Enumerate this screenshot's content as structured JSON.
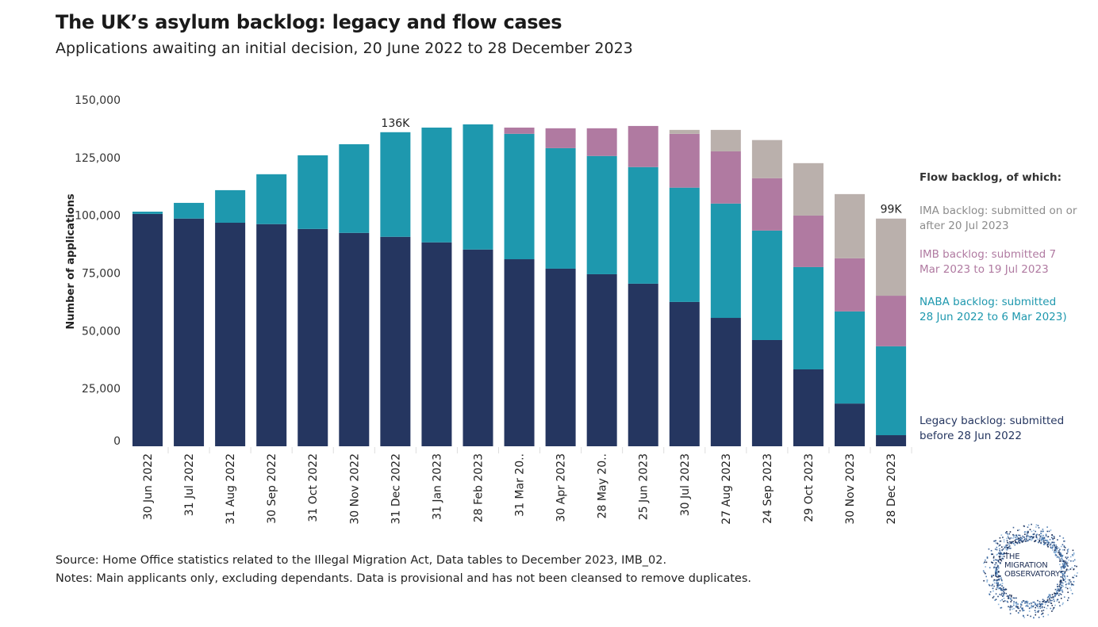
{
  "title": "The UK’s asylum backlog: legacy and flow cases",
  "subtitle": "Applications awaiting an initial decision, 20 June 2022 to 28 December 2023",
  "chart_data": {
    "type": "bar",
    "stacked": true,
    "ylabel": "Number of applications",
    "ylim": [
      0,
      150000
    ],
    "yticks": [
      0,
      25000,
      50000,
      75000,
      100000,
      125000,
      150000
    ],
    "ytick_labels": [
      "0",
      "25,000",
      "50,000",
      "75,000",
      "100,000",
      "125,000",
      "150,000"
    ],
    "grid": false,
    "categories": [
      "30 Jun 2022",
      "31 Jul 2022",
      "31 Aug 2022",
      "30 Sep 2022",
      "31 Oct 2022",
      "30 Nov 2022",
      "31 Dec 2022",
      "31 Jan 2023",
      "28 Feb 2023",
      "31 Mar 20..",
      "30 Apr 2023",
      "28 May 20..",
      "25 Jun 2023",
      "30 Jul 2023",
      "27 Aug 2023",
      "24 Sep 2023",
      "29 Oct 2023",
      "30 Nov 2023",
      "28 Dec 2023"
    ],
    "series": [
      {
        "name": "Legacy backlog: submitted before 28 Jun 2022",
        "color": "#253660",
        "values": [
          100600,
          98600,
          96800,
          96200,
          94100,
          92400,
          90700,
          88300,
          85200,
          81000,
          76900,
          74500,
          70400,
          62500,
          55600,
          46000,
          33300,
          18500,
          4800
        ]
      },
      {
        "name": "NABA backlog: submitted 28 Jun 2022 to 6 Mar 2023)",
        "color": "#1e98ae",
        "values": [
          1000,
          6800,
          14100,
          21600,
          31900,
          38400,
          45300,
          49700,
          54200,
          54300,
          52200,
          51200,
          50500,
          49500,
          49500,
          47400,
          44300,
          39900,
          38500
        ]
      },
      {
        "name": "IMB backlog: submitted 7 Mar 2023 to 19 Jul 2023",
        "color": "#b07aa1",
        "values": [
          0,
          0,
          0,
          0,
          0,
          0,
          0,
          0,
          0,
          2700,
          8600,
          12000,
          17800,
          23300,
          22600,
          22700,
          22300,
          23000,
          21900
        ]
      },
      {
        "name": "IMA backlog: submitted on or after 20 Jul 2023",
        "color": "#bab0ac",
        "values": [
          0,
          0,
          0,
          0,
          0,
          0,
          0,
          0,
          0,
          0,
          0,
          0,
          0,
          1700,
          9300,
          16500,
          22700,
          27800,
          33400
        ]
      }
    ],
    "annotations": [
      {
        "category": "31 Dec 2022",
        "label": "136K"
      },
      {
        "category": "28 Dec 2023",
        "label": "99K"
      }
    ],
    "legend_title": "Flow backlog, of which:",
    "legend_placement": "right"
  },
  "legend": {
    "heading": "Flow backlog, of which:",
    "ima": "IMA backlog: submitted on or after 20 Jul 2023",
    "imb": "IMB backlog: submitted 7 Mar 2023 to 19 Jul 2023",
    "naba": "NABA backlog: submitted 28 Jun 2022 to 6 Mar 2023)",
    "legacy": "Legacy backlog: submitted before 28 Jun 2022"
  },
  "footer": {
    "source": "Source: Home Office statistics related to the Illegal Migration Act, Data tables to December 2023, IMB_02.",
    "notes": "Notes: Main applicants only, excluding dependants. Data is provisional and has not been cleansed to remove duplicates."
  },
  "logo": {
    "line1": "THE",
    "line2": "MIGRATION",
    "line3": "OBSERVATORY"
  }
}
